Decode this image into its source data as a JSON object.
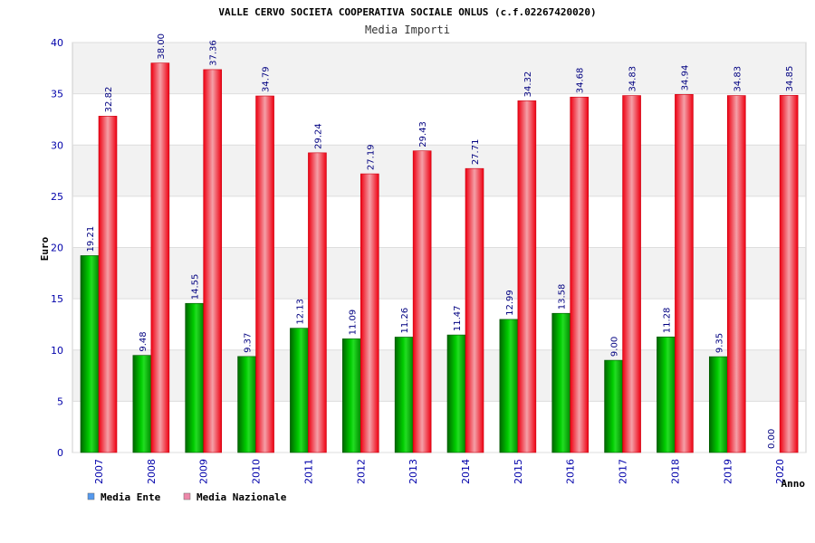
{
  "chart_data": {
    "type": "bar",
    "title": "VALLE CERVO SOCIETA COOPERATIVA SOCIALE ONLUS (c.f.02267420020)",
    "subtitle": "Media Importi",
    "xlabel": "Anno",
    "ylabel": "Euro",
    "ylim": [
      0,
      40
    ],
    "yticks": [
      0,
      5,
      10,
      15,
      20,
      25,
      30,
      35,
      40
    ],
    "categories": [
      "2007",
      "2008",
      "2009",
      "2010",
      "2011",
      "2012",
      "2013",
      "2014",
      "2015",
      "2016",
      "2017",
      "2018",
      "2019",
      "2020"
    ],
    "series": [
      {
        "name": "Media Ente",
        "values": [
          19.21,
          9.48,
          14.55,
          9.37,
          12.13,
          11.09,
          11.26,
          11.47,
          12.99,
          13.58,
          9.0,
          11.28,
          9.35,
          0.0
        ],
        "labels": [
          "19.21",
          "9.48",
          "14.55",
          "9.37",
          "12.13",
          "11.09",
          "11.26",
          "11.47",
          "12.99",
          "13.58",
          "9.00",
          "11.28",
          "9.35",
          "0.00"
        ],
        "color": "#00bb00",
        "legend_color": "#5599ee"
      },
      {
        "name": "Media Nazionale",
        "values": [
          32.82,
          38.0,
          37.36,
          34.79,
          29.24,
          27.19,
          29.43,
          27.71,
          34.32,
          34.68,
          34.83,
          34.94,
          34.83,
          34.85
        ],
        "labels": [
          "32.82",
          "38.00",
          "37.36",
          "34.79",
          "29.24",
          "27.19",
          "29.43",
          "27.71",
          "34.32",
          "34.68",
          "34.83",
          "34.94",
          "34.83",
          "34.85"
        ],
        "color": "#ee1122",
        "legend_color": "#ee88aa"
      }
    ],
    "legend_position": "bottom-left",
    "grid": true
  }
}
